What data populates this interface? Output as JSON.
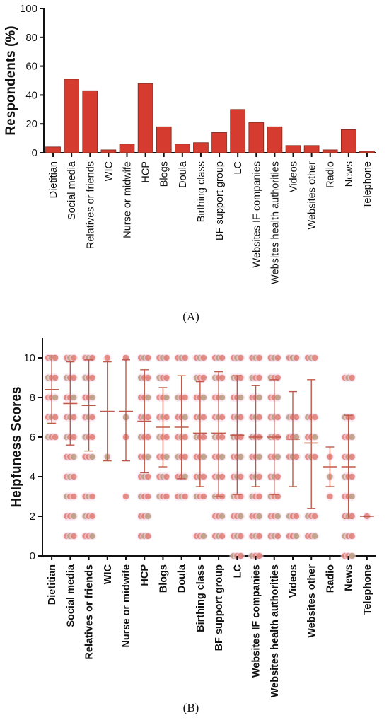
{
  "chart_data": [
    {
      "panel": "(A)",
      "type": "bar",
      "ylabel": "Respondents (%)",
      "ylim": [
        0,
        100
      ],
      "yticks": [
        0,
        20,
        40,
        60,
        80,
        100
      ],
      "categories": [
        "Dietitian",
        "Social media",
        "Relatives or friends",
        "WIC",
        "Nurse or midwife",
        "HCP",
        "Blogs",
        "Doula",
        "Birthing class",
        "BF support group",
        "LC",
        "Websites IF companies",
        "Websites health authorities",
        "Videos",
        "Websites other",
        "Radio",
        "News",
        "Telephone"
      ],
      "values": [
        4,
        51,
        43,
        2,
        6,
        48,
        18,
        6,
        7,
        14,
        30,
        21,
        18,
        5,
        5,
        2,
        16,
        1
      ],
      "colors": {
        "bar": "#d63b2f",
        "bar_edge": "#7a2a20"
      }
    },
    {
      "panel": "(B)",
      "type": "scatter",
      "ylabel": "Helpfuness Scores",
      "ylim": [
        0,
        11
      ],
      "yticks": [
        0,
        2,
        4,
        6,
        8,
        10
      ],
      "categories": [
        "Dietitian",
        "Social media",
        "Relatives or friends",
        "WIC",
        "Nurse or midwife",
        "HCP",
        "Blogs",
        "Doula",
        "Birthing class",
        "BF support group",
        "LC",
        "Websites IF companies",
        "Websites health authorities",
        "Videos",
        "Websites other",
        "Radio",
        "News",
        "Telephone"
      ],
      "mean": [
        8.4,
        7.7,
        7.6,
        7.3,
        7.3,
        6.8,
        6.5,
        6.5,
        6.2,
        6.2,
        6.1,
        6.0,
        6.0,
        5.9,
        5.7,
        4.5,
        4.5,
        2.0
      ],
      "sd_low": [
        6.7,
        5.6,
        5.3,
        4.8,
        4.8,
        4.2,
        4.5,
        3.9,
        3.5,
        3.0,
        3.1,
        3.5,
        3.1,
        3.5,
        2.4,
        3.5,
        1.9,
        2.0
      ],
      "sd_high": [
        10.1,
        9.8,
        9.9,
        9.8,
        9.9,
        9.4,
        8.5,
        9.1,
        8.8,
        9.3,
        9.1,
        8.6,
        8.9,
        8.3,
        8.9,
        5.5,
        7.1,
        2.0
      ],
      "points": [
        [
          10,
          9,
          8,
          7,
          6
        ],
        [
          10,
          9,
          8,
          7,
          6,
          5,
          4,
          3,
          2,
          1
        ],
        [
          10,
          9,
          8,
          7,
          6,
          5,
          3,
          2,
          1
        ],
        [
          10,
          5
        ],
        [
          10,
          7,
          6,
          3
        ],
        [
          10,
          9,
          8,
          7,
          6,
          5,
          4,
          3,
          2,
          1
        ],
        [
          10,
          9,
          8,
          7,
          6,
          5,
          4,
          3
        ],
        [
          10,
          8,
          7,
          6,
          5,
          4,
          3
        ],
        [
          10,
          9,
          8,
          7,
          6,
          5,
          4,
          3,
          1
        ],
        [
          10,
          9,
          8,
          7,
          6,
          5,
          4,
          3,
          2,
          1
        ],
        [
          10,
          9,
          8,
          7,
          6,
          5,
          4,
          3,
          2,
          1,
          0
        ],
        [
          10,
          9,
          8,
          7,
          6,
          5,
          4,
          3,
          2,
          1,
          0
        ],
        [
          10,
          9,
          8,
          7,
          6,
          5,
          4,
          3,
          2,
          1
        ],
        [
          10,
          7,
          6,
          5,
          2,
          1
        ],
        [
          10,
          7,
          6,
          5,
          2,
          1
        ],
        [
          5,
          4,
          3
        ],
        [
          9,
          7,
          6,
          5,
          4,
          3,
          2,
          1,
          0
        ],
        [
          2
        ]
      ],
      "colors": {
        "point": "#de7c72",
        "point_alt": "#b89a7c",
        "halo": "#f7dff0",
        "errorbar": "#c05a4a"
      }
    }
  ],
  "panel_labels": {
    "a": "(A)",
    "b": "(B)"
  }
}
